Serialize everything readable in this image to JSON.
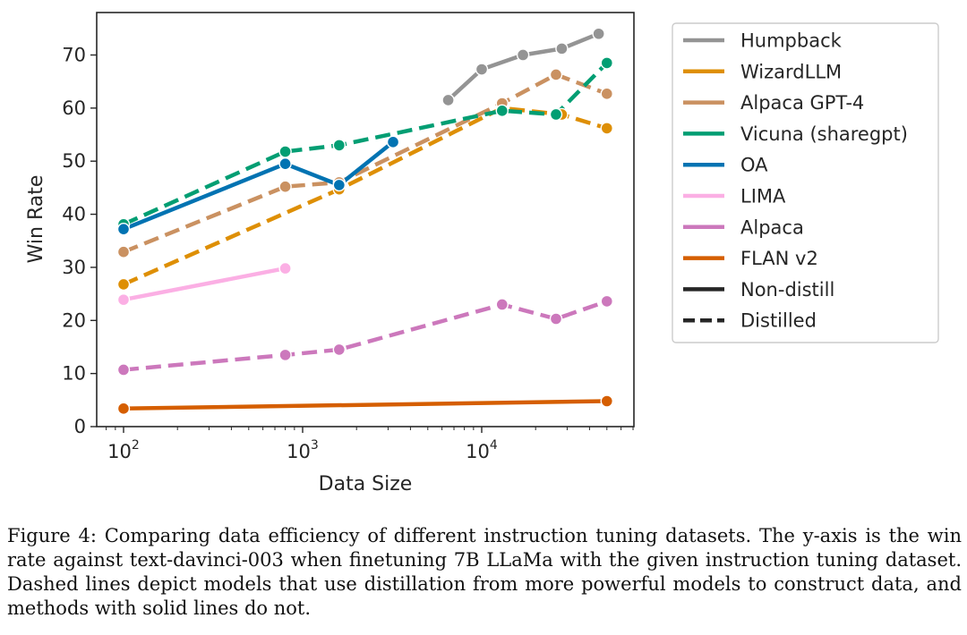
{
  "chart_data": {
    "type": "line",
    "xscale": "log",
    "xlabel": "Data Size",
    "ylabel": "Win Rate",
    "xlim_log10": [
      1.85,
      4.85
    ],
    "ylim": [
      0,
      78
    ],
    "yticks": [
      0,
      10,
      20,
      30,
      40,
      50,
      60,
      70
    ],
    "xticks": [
      {
        "exp": 2,
        "base": "10",
        "sup": "2"
      },
      {
        "exp": 3,
        "base": "10",
        "sup": "3"
      },
      {
        "exp": 4,
        "base": "10",
        "sup": "4"
      }
    ],
    "legend_position": "outside-right",
    "series": [
      {
        "name": "Humpback",
        "color": "#949494",
        "style": "solid",
        "x": [
          6500,
          10000,
          17000,
          28000,
          45000
        ],
        "y": [
          61.5,
          67.3,
          70.0,
          71.2,
          74.0
        ]
      },
      {
        "name": "WizardLLM",
        "color": "#de8f05",
        "style": "dashed",
        "x": [
          100,
          1600,
          13000,
          28000,
          50000
        ],
        "y": [
          26.8,
          44.7,
          60.0,
          58.8,
          56.2
        ]
      },
      {
        "name": "Alpaca GPT-4",
        "color": "#ca9161",
        "style": "dashed",
        "x": [
          100,
          800,
          1600,
          13000,
          26000,
          50000
        ],
        "y": [
          32.9,
          45.2,
          46.0,
          60.9,
          66.3,
          62.7
        ]
      },
      {
        "name": "Vicuna (sharegpt)",
        "color": "#029e73",
        "style": "dashed",
        "x": [
          100,
          800,
          1600,
          13000,
          26000,
          50000
        ],
        "y": [
          38.1,
          51.8,
          53.0,
          59.5,
          58.8,
          68.5
        ]
      },
      {
        "name": "OA",
        "color": "#0173b2",
        "style": "solid",
        "x": [
          100,
          800,
          1600,
          3200
        ],
        "y": [
          37.2,
          49.5,
          45.5,
          53.6
        ]
      },
      {
        "name": "LIMA",
        "color": "#fbafe4",
        "style": "solid",
        "x": [
          100,
          800
        ],
        "y": [
          23.9,
          29.8
        ]
      },
      {
        "name": "Alpaca",
        "color": "#cc78bc",
        "style": "dashed",
        "x": [
          100,
          800,
          1600,
          13000,
          26000,
          50000
        ],
        "y": [
          10.7,
          13.5,
          14.5,
          23.0,
          20.3,
          23.6
        ]
      },
      {
        "name": "FLAN v2",
        "color": "#d55e00",
        "style": "solid",
        "x": [
          100,
          50000
        ],
        "y": [
          3.4,
          4.8
        ]
      }
    ],
    "style_legend": [
      {
        "name": "Non-distill",
        "style": "solid"
      },
      {
        "name": "Distilled",
        "style": "dashed"
      }
    ]
  },
  "caption": "Figure 4: Comparing data efficiency of different instruction tuning datasets. The y-axis is the win rate against text-davinci-003 when finetuning 7B LLaMa with the given instruction tuning dataset. Dashed lines depict models that use distillation from more powerful models to construct data, and methods with solid lines do not."
}
